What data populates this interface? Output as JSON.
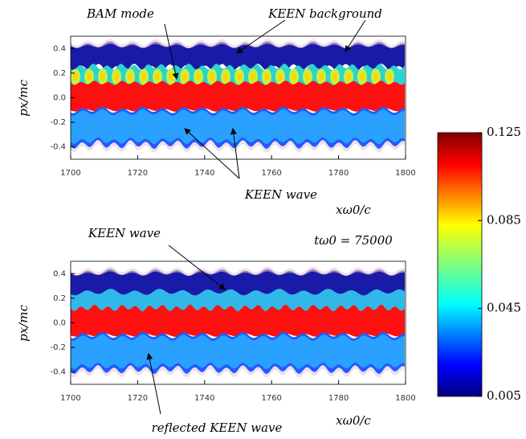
{
  "chart_data": [
    {
      "type": "phase-space",
      "xlabel": "xω0/c",
      "ylabel": "px/mc",
      "xlim": [
        1700,
        1800
      ],
      "xticks": [
        1700,
        1720,
        1740,
        1760,
        1780,
        1800
      ],
      "ylim": [
        -0.5,
        0.5
      ],
      "yticks": [
        -0.4,
        -0.2,
        {
          "value": 0,
          "label": "0.0"
        },
        0.2,
        0.4
      ],
      "annotations": [
        "BAM mode",
        "KEEN background",
        "KEEN wave"
      ]
    },
    {
      "type": "phase-space",
      "xlabel": "xω0/c",
      "ylabel": "px/mc",
      "xlim": [
        1700,
        1800
      ],
      "xticks": [
        1700,
        1720,
        1740,
        1760,
        1780,
        1800
      ],
      "ylim": [
        -0.5,
        0.5
      ],
      "yticks": [
        -0.4,
        -0.2,
        {
          "value": 0,
          "label": "0.0"
        },
        0.2,
        0.4
      ],
      "time_label": "tω0 = 75000",
      "annotations": [
        "KEEN wave",
        "reflected KEEN wave"
      ]
    },
    {
      "type": "colorbar",
      "ylim": [
        0.005,
        0.125
      ],
      "yticks": [
        0.005,
        0.045,
        0.085,
        0.125
      ]
    }
  ]
}
